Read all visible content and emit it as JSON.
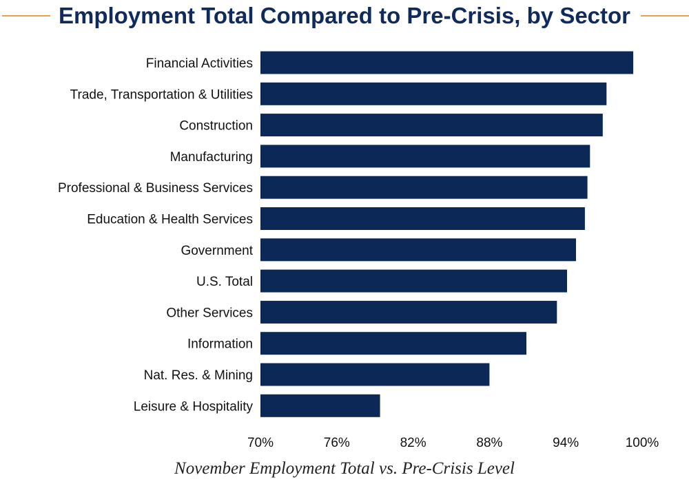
{
  "chart_data": {
    "type": "bar",
    "orientation": "horizontal",
    "title": "Employment Total Compared to Pre-Crisis, by Sector",
    "xlabel": "November Employment Total vs. Pre-Crisis Level",
    "ylabel": "",
    "categories": [
      "Financial Activities",
      "Trade, Transportation & Utilities",
      "Construction",
      "Manufacturing",
      "Professional & Business Services",
      "Education & Health Services",
      "Government",
      "U.S. Total",
      "Other Services",
      "Information",
      "Nat. Res. & Mining",
      "Leisure & Hospitality"
    ],
    "values": [
      99.3,
      97.2,
      96.9,
      95.9,
      95.7,
      95.5,
      94.8,
      94.1,
      93.3,
      90.9,
      88.0,
      79.4
    ],
    "xlim": [
      70,
      100
    ],
    "ticks": [
      "70%",
      "76%",
      "82%",
      "88%",
      "94%",
      "100%"
    ],
    "grid": false,
    "bar_color": "#0b2856"
  }
}
